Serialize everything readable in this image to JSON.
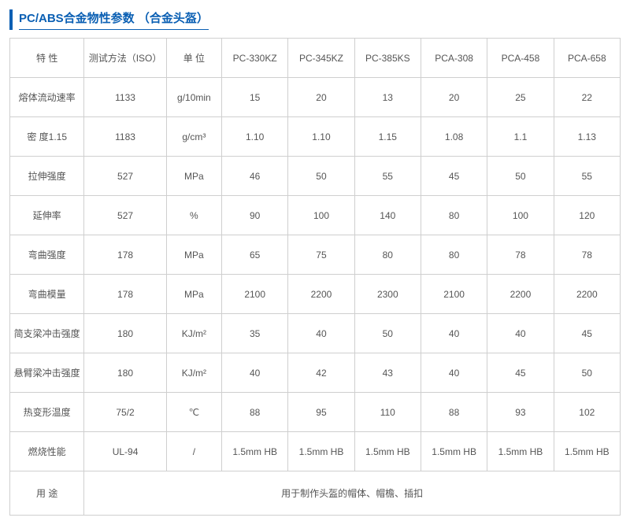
{
  "title": "PC/ABS合金物性参数 （合金头盔）",
  "colors": {
    "accent": "#0a5fb3",
    "border": "#cfcfcf",
    "text": "#555555",
    "background": "#ffffff"
  },
  "table": {
    "columns": [
      "特  性",
      "测试方法（ISO）",
      "单 位",
      "PC-330KZ",
      "PC-345KZ",
      "PC-385KS",
      "PCA-308",
      "PCA-458",
      "PCA-658"
    ],
    "rows": [
      [
        "熔体流动速率",
        "1133",
        "g/10min",
        "15",
        "20",
        "13",
        "20",
        "25",
        "22"
      ],
      [
        "密  度1.15",
        "1183",
        "g/cm³",
        "1.10",
        "1.10",
        "1.15",
        "1.08",
        "1.1",
        "1.13"
      ],
      [
        "拉伸强度",
        "527",
        "MPa",
        "46",
        "50",
        "55",
        "45",
        "50",
        "55"
      ],
      [
        "延伸率",
        "527",
        "%",
        "90",
        "100",
        "140",
        "80",
        "100",
        "120"
      ],
      [
        "弯曲强度",
        "178",
        "MPa",
        "65",
        "75",
        "80",
        "80",
        "78",
        "78"
      ],
      [
        "弯曲模量",
        "178",
        "MPa",
        "2100",
        "2200",
        "2300",
        "2100",
        "2200",
        "2200"
      ],
      [
        "简支梁冲击强度",
        "180",
        "KJ/m²",
        "35",
        "40",
        "50",
        "40",
        "40",
        "45"
      ],
      [
        "悬臂梁冲击强度",
        "180",
        "KJ/m²",
        "40",
        "42",
        "43",
        "40",
        "45",
        "50"
      ],
      [
        "热变形温度",
        "75/2",
        "℃",
        "88",
        "95",
        "110",
        "88",
        "93",
        "102"
      ],
      [
        "燃烧性能",
        "UL-94",
        "/",
        "1.5mm HB",
        "1.5mm HB",
        "1.5mm HB",
        "1.5mm HB",
        "1.5mm HB",
        "1.5mm HB"
      ]
    ],
    "usage_label": "用  途",
    "usage_value": "用于制作头盔的帽体、帽檐、插扣"
  }
}
